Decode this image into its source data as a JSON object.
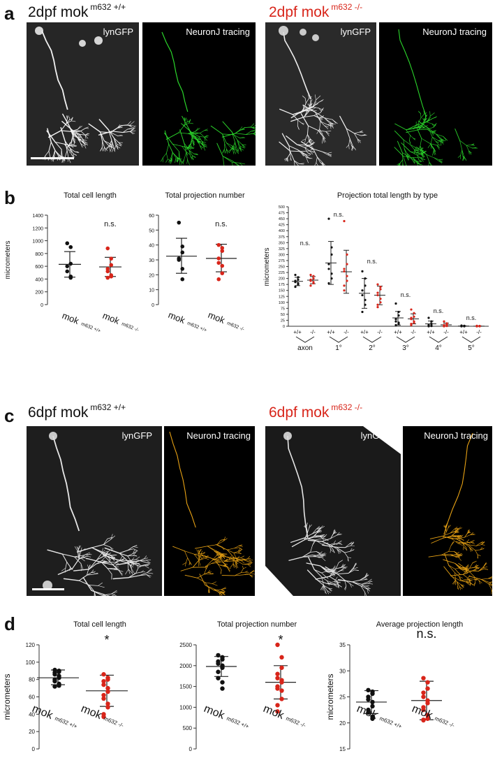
{
  "figure": {
    "panels": {
      "a": {
        "letter": "a",
        "wt_title": "2dpf mok",
        "wt_sup": "m632 +/+",
        "mut_title": "2dpf mok",
        "mut_sup": "m632 -/-",
        "img_label_gfp": "lynGFP",
        "img_label_trace": "NeuronJ tracing",
        "trace_color": "#2bd62b"
      },
      "b": {
        "letter": "b"
      },
      "c": {
        "letter": "c",
        "wt_title": "6dpf mok",
        "wt_sup": "m632 +/+",
        "mut_title": "6dpf mok",
        "mut_sup": "m632 -/-",
        "img_label_gfp": "lynGFP",
        "img_label_trace": "NeuronJ tracing",
        "trace_color": "#e8a214"
      },
      "d": {
        "letter": "d"
      }
    },
    "colors": {
      "wt": "#111111",
      "mut": "#d8251a"
    },
    "group_labels": {
      "main": "mok",
      "wt_sup": "m632 +/+",
      "mut_sup": "m632 -/-"
    }
  },
  "chart_data": [
    {
      "id": "b1",
      "type": "scatter",
      "title": "Total cell length",
      "ylabel": "micrometers",
      "ylim": [
        0,
        1400
      ],
      "yticks": [
        0,
        200,
        400,
        600,
        800,
        1000,
        1200,
        1400
      ],
      "categories": [
        "mok m632 +/+",
        "mok m632 -/-"
      ],
      "series": [
        {
          "values": [
            960,
            900,
            640,
            600,
            520,
            440,
            420
          ],
          "mean": 630,
          "sd_low": 430,
          "sd_high": 830
        },
        {
          "values": [
            880,
            720,
            620,
            560,
            520,
            460,
            440,
            420
          ],
          "mean": 590,
          "sd_low": 440,
          "sd_high": 740
        }
      ],
      "annotations": [
        "",
        "n.s."
      ]
    },
    {
      "id": "b2",
      "type": "scatter",
      "title": "Total projection number",
      "ylabel": "",
      "ylim": [
        0,
        60
      ],
      "yticks": [
        0,
        10,
        20,
        30,
        40,
        50,
        60
      ],
      "categories": [
        "mok m632 +/+",
        "mok m632 -/-"
      ],
      "series": [
        {
          "values": [
            55,
            39,
            35,
            31,
            30,
            24,
            17
          ],
          "mean": 32.5,
          "sd_low": 21,
          "sd_high": 44.5
        },
        {
          "values": [
            40,
            38,
            36,
            31,
            28,
            26,
            21,
            17
          ],
          "mean": 31,
          "sd_low": 22,
          "sd_high": 40.5
        }
      ],
      "annotations": [
        "",
        "n.s."
      ]
    },
    {
      "id": "b3",
      "type": "scatter",
      "title": "Projection total length by type",
      "ylabel": "micrometers",
      "ylim": [
        0,
        500
      ],
      "yticks": [
        0,
        25,
        50,
        75,
        100,
        125,
        150,
        175,
        200,
        225,
        250,
        275,
        300,
        325,
        350,
        375,
        400,
        425,
        450,
        475,
        500
      ],
      "tick_labels": [
        "+/+",
        "-/-",
        "+/+",
        "-/-",
        "+/+",
        "-/-",
        "+/+",
        "-/-",
        "+/+",
        "-/-",
        "+/+",
        "-/-"
      ],
      "group_labels": [
        "axon",
        "1°",
        "2°",
        "3°",
        "4°",
        "5°"
      ],
      "series": [
        {
          "group": "axon",
          "genotype": "+/+",
          "values": [
            215,
            205,
            195,
            190,
            185,
            180,
            175,
            165
          ],
          "mean": 188,
          "sd_low": 170,
          "sd_high": 205
        },
        {
          "group": "axon",
          "genotype": "-/-",
          "values": [
            215,
            210,
            200,
            195,
            190,
            185,
            180,
            170
          ],
          "mean": 193,
          "sd_low": 178,
          "sd_high": 208
        },
        {
          "group": "1°",
          "genotype": "+/+",
          "values": [
            450,
            330,
            300,
            260,
            240,
            220,
            200,
            180
          ],
          "mean": 265,
          "sd_low": 175,
          "sd_high": 355
        },
        {
          "group": "1°",
          "genotype": "-/-",
          "values": [
            440,
            300,
            260,
            240,
            230,
            210,
            190,
            170,
            150
          ],
          "mean": 228,
          "sd_low": 138,
          "sd_high": 318
        },
        {
          "group": "2°",
          "genotype": "+/+",
          "values": [
            230,
            200,
            170,
            150,
            130,
            110,
            90,
            60
          ],
          "mean": 138,
          "sd_low": 75,
          "sd_high": 200
        },
        {
          "group": "2°",
          "genotype": "-/-",
          "values": [
            175,
            165,
            155,
            140,
            130,
            115,
            100,
            90,
            80
          ],
          "mean": 130,
          "sd_low": 90,
          "sd_high": 168
        },
        {
          "group": "3°",
          "genotype": "+/+",
          "values": [
            95,
            60,
            45,
            30,
            20,
            15,
            10,
            5
          ],
          "mean": 35,
          "sd_low": 5,
          "sd_high": 62
        },
        {
          "group": "3°",
          "genotype": "-/-",
          "values": [
            70,
            55,
            40,
            35,
            30,
            20,
            15,
            10,
            5
          ],
          "mean": 31,
          "sd_low": 10,
          "sd_high": 52
        },
        {
          "group": "4°",
          "genotype": "+/+",
          "values": [
            35,
            20,
            10,
            5,
            3,
            2,
            1,
            0
          ],
          "mean": 10,
          "sd_low": 0,
          "sd_high": 22
        },
        {
          "group": "4°",
          "genotype": "-/-",
          "values": [
            20,
            12,
            8,
            5,
            3,
            2,
            1,
            0,
            0
          ],
          "mean": 6,
          "sd_low": 0,
          "sd_high": 13
        },
        {
          "group": "5°",
          "genotype": "+/+",
          "values": [
            3,
            2,
            1,
            1,
            0,
            0,
            0,
            0
          ],
          "mean": 1,
          "sd_low": 0,
          "sd_high": 2
        },
        {
          "group": "5°",
          "genotype": "-/-",
          "values": [
            2,
            1,
            1,
            0,
            0,
            0,
            0,
            0,
            0
          ],
          "mean": 0.5,
          "sd_low": 0,
          "sd_high": 1
        }
      ],
      "annotations": [
        "n.s.",
        "n.s.",
        "n.s.",
        "n.s.",
        "n.s.",
        "n.s."
      ]
    },
    {
      "id": "d1",
      "type": "scatter",
      "title": "Total cell length",
      "ylabel": "micrometers",
      "ylim": [
        0,
        120
      ],
      "yticks": [
        0,
        20,
        40,
        60,
        80,
        100,
        120
      ],
      "categories": [
        "mok m632 +/+",
        "mok m632 -/-"
      ],
      "series": [
        {
          "values": [
            91,
            90,
            89,
            88,
            86,
            84,
            82,
            80,
            78,
            75,
            73,
            72
          ],
          "mean": 82,
          "sd_low": 74,
          "sd_high": 91
        },
        {
          "values": [
            86,
            82,
            80,
            78,
            74,
            70,
            66,
            62,
            58,
            52,
            48,
            40,
            37
          ],
          "mean": 67,
          "sd_low": 49,
          "sd_high": 85
        }
      ],
      "annotations": [
        "",
        "*"
      ]
    },
    {
      "id": "d2",
      "type": "scatter",
      "title": "Total projection number",
      "ylabel": "",
      "ylim": [
        0,
        2500
      ],
      "yticks": [
        0,
        500,
        1000,
        1500,
        2000,
        2500
      ],
      "categories": [
        "mok m632 +/+",
        "mok m632 -/-"
      ],
      "series": [
        {
          "values": [
            2250,
            2200,
            2150,
            2100,
            2050,
            2000,
            1950,
            1850,
            1700,
            1600,
            1450
          ],
          "mean": 1980,
          "sd_low": 1740,
          "sd_high": 2220
        },
        {
          "values": [
            2500,
            2200,
            1950,
            1800,
            1700,
            1650,
            1600,
            1500,
            1450,
            1400,
            1200,
            1050,
            900
          ],
          "mean": 1600,
          "sd_low": 1200,
          "sd_high": 2000
        }
      ],
      "annotations": [
        "",
        "*"
      ]
    },
    {
      "id": "d3",
      "type": "scatter",
      "title": "Average projection length",
      "ylabel": "micrometers",
      "ylim": [
        15,
        35
      ],
      "yticks": [
        15,
        20,
        25,
        30,
        35
      ],
      "categories": [
        "mok m632 +/+",
        "mok m632 -/-"
      ],
      "series": [
        {
          "values": [
            26.3,
            26.0,
            25.6,
            25.0,
            24.5,
            24.0,
            23.2,
            22.5,
            22.0,
            21.2,
            20.8
          ],
          "mean": 24.0,
          "sd_low": 21.8,
          "sd_high": 26.2
        },
        {
          "values": [
            28.6,
            27.8,
            26.6,
            25.8,
            25.0,
            24.3,
            23.8,
            23.0,
            22.5,
            21.5,
            20.8,
            20.6,
            20.5
          ],
          "mean": 24.3,
          "sd_low": 20.6,
          "sd_high": 28.0
        }
      ],
      "annotations": [
        "",
        "n.s."
      ]
    }
  ]
}
